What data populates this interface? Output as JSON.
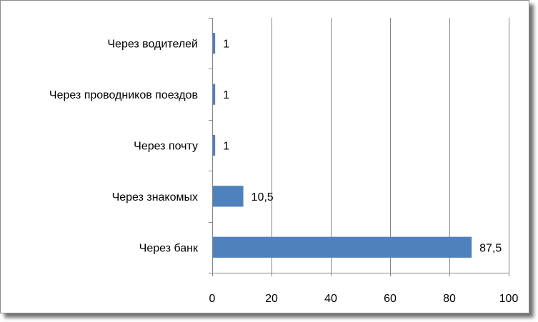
{
  "chart_data": {
    "type": "bar",
    "orientation": "horizontal",
    "categories": [
      "Через банк",
      "Через знакомых",
      "Через почту",
      "Через проводников поездов",
      "Через водителей"
    ],
    "values": [
      87.5,
      10.5,
      1,
      1,
      1
    ],
    "data_labels": [
      "87,5",
      "10,5",
      "1",
      "1",
      "1"
    ],
    "x_ticks": [
      0,
      20,
      40,
      60,
      80,
      100
    ],
    "xlim": [
      0,
      100
    ],
    "title": "",
    "xlabel": "",
    "ylabel": "",
    "grid": "vertical major gridlines",
    "legend": "none",
    "bar_color": "#4f81bd",
    "gridline_color": "#868686"
  }
}
